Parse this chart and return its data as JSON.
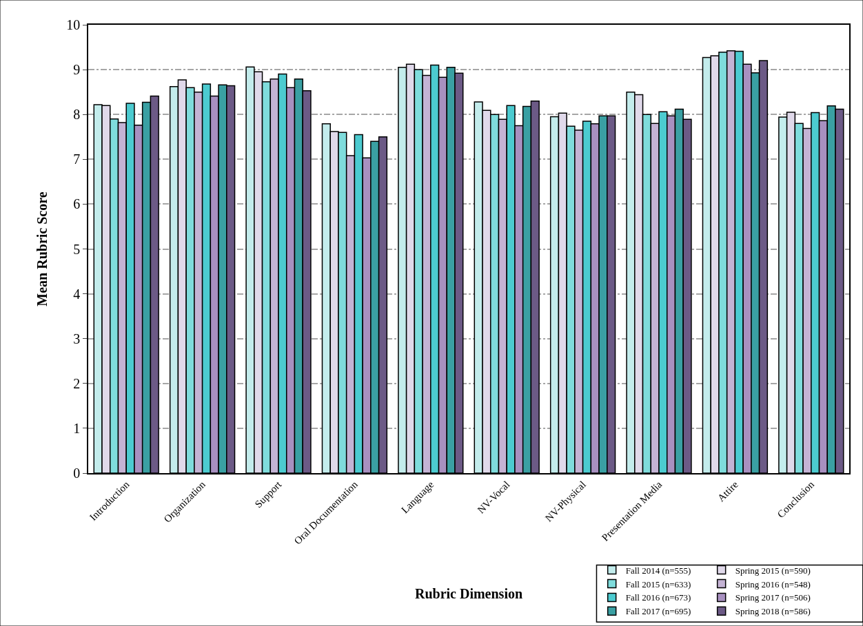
{
  "chart_data": {
    "type": "bar",
    "xlabel": "Rubric Dimension",
    "ylabel": "Mean Rubric Score",
    "categories": [
      "Introduction",
      "Organization",
      "Support",
      "Oral Documentation",
      "Language",
      "NV-Vocal",
      "NV-Physical",
      "Presentation Media",
      "Attire",
      "Conclusion"
    ],
    "series": [
      {
        "name": "Fall 2014 (n=555)",
        "color": "#c3ecec",
        "values": [
          8.22,
          8.62,
          9.06,
          7.79,
          9.05,
          8.28,
          7.95,
          8.5,
          9.27,
          7.94
        ]
      },
      {
        "name": "Spring 2015 (n=590)",
        "color": "#e0d9ea",
        "values": [
          8.2,
          8.77,
          8.95,
          7.62,
          9.12,
          8.09,
          8.03,
          8.44,
          9.31,
          8.05
        ]
      },
      {
        "name": "Fall 2015 (n=633)",
        "color": "#7fdcdc",
        "values": [
          7.9,
          8.6,
          8.73,
          7.6,
          9.0,
          8.0,
          7.74,
          8.0,
          9.39,
          7.8
        ]
      },
      {
        "name": "Spring 2016 (n=548)",
        "color": "#c4b3d4",
        "values": [
          7.82,
          8.5,
          8.79,
          7.08,
          8.87,
          7.89,
          7.65,
          7.8,
          9.42,
          7.69
        ]
      },
      {
        "name": "Fall 2016 (n=673)",
        "color": "#4ccbd0",
        "values": [
          8.25,
          8.68,
          8.9,
          7.55,
          9.1,
          8.2,
          7.85,
          8.06,
          9.41,
          8.04
        ]
      },
      {
        "name": "Spring 2017 (n=506)",
        "color": "#a890c0",
        "values": [
          7.76,
          8.41,
          8.6,
          7.03,
          8.83,
          7.75,
          7.79,
          7.97,
          9.12,
          7.86
        ]
      },
      {
        "name": "Fall 2017 (n=695)",
        "color": "#3aa0a3",
        "values": [
          8.27,
          8.66,
          8.79,
          7.4,
          9.05,
          8.18,
          7.97,
          8.12,
          8.93,
          8.19
        ]
      },
      {
        "name": "Spring 2018 (n=586)",
        "color": "#6c5a86",
        "values": [
          8.41,
          8.64,
          8.53,
          7.5,
          8.92,
          8.3,
          7.97,
          7.89,
          9.2,
          8.12
        ]
      }
    ],
    "ylim": [
      0,
      10
    ],
    "yticks": [
      0,
      1,
      2,
      3,
      4,
      5,
      6,
      7,
      8,
      9,
      10
    ],
    "grid": "y",
    "legend": "bottom right"
  }
}
